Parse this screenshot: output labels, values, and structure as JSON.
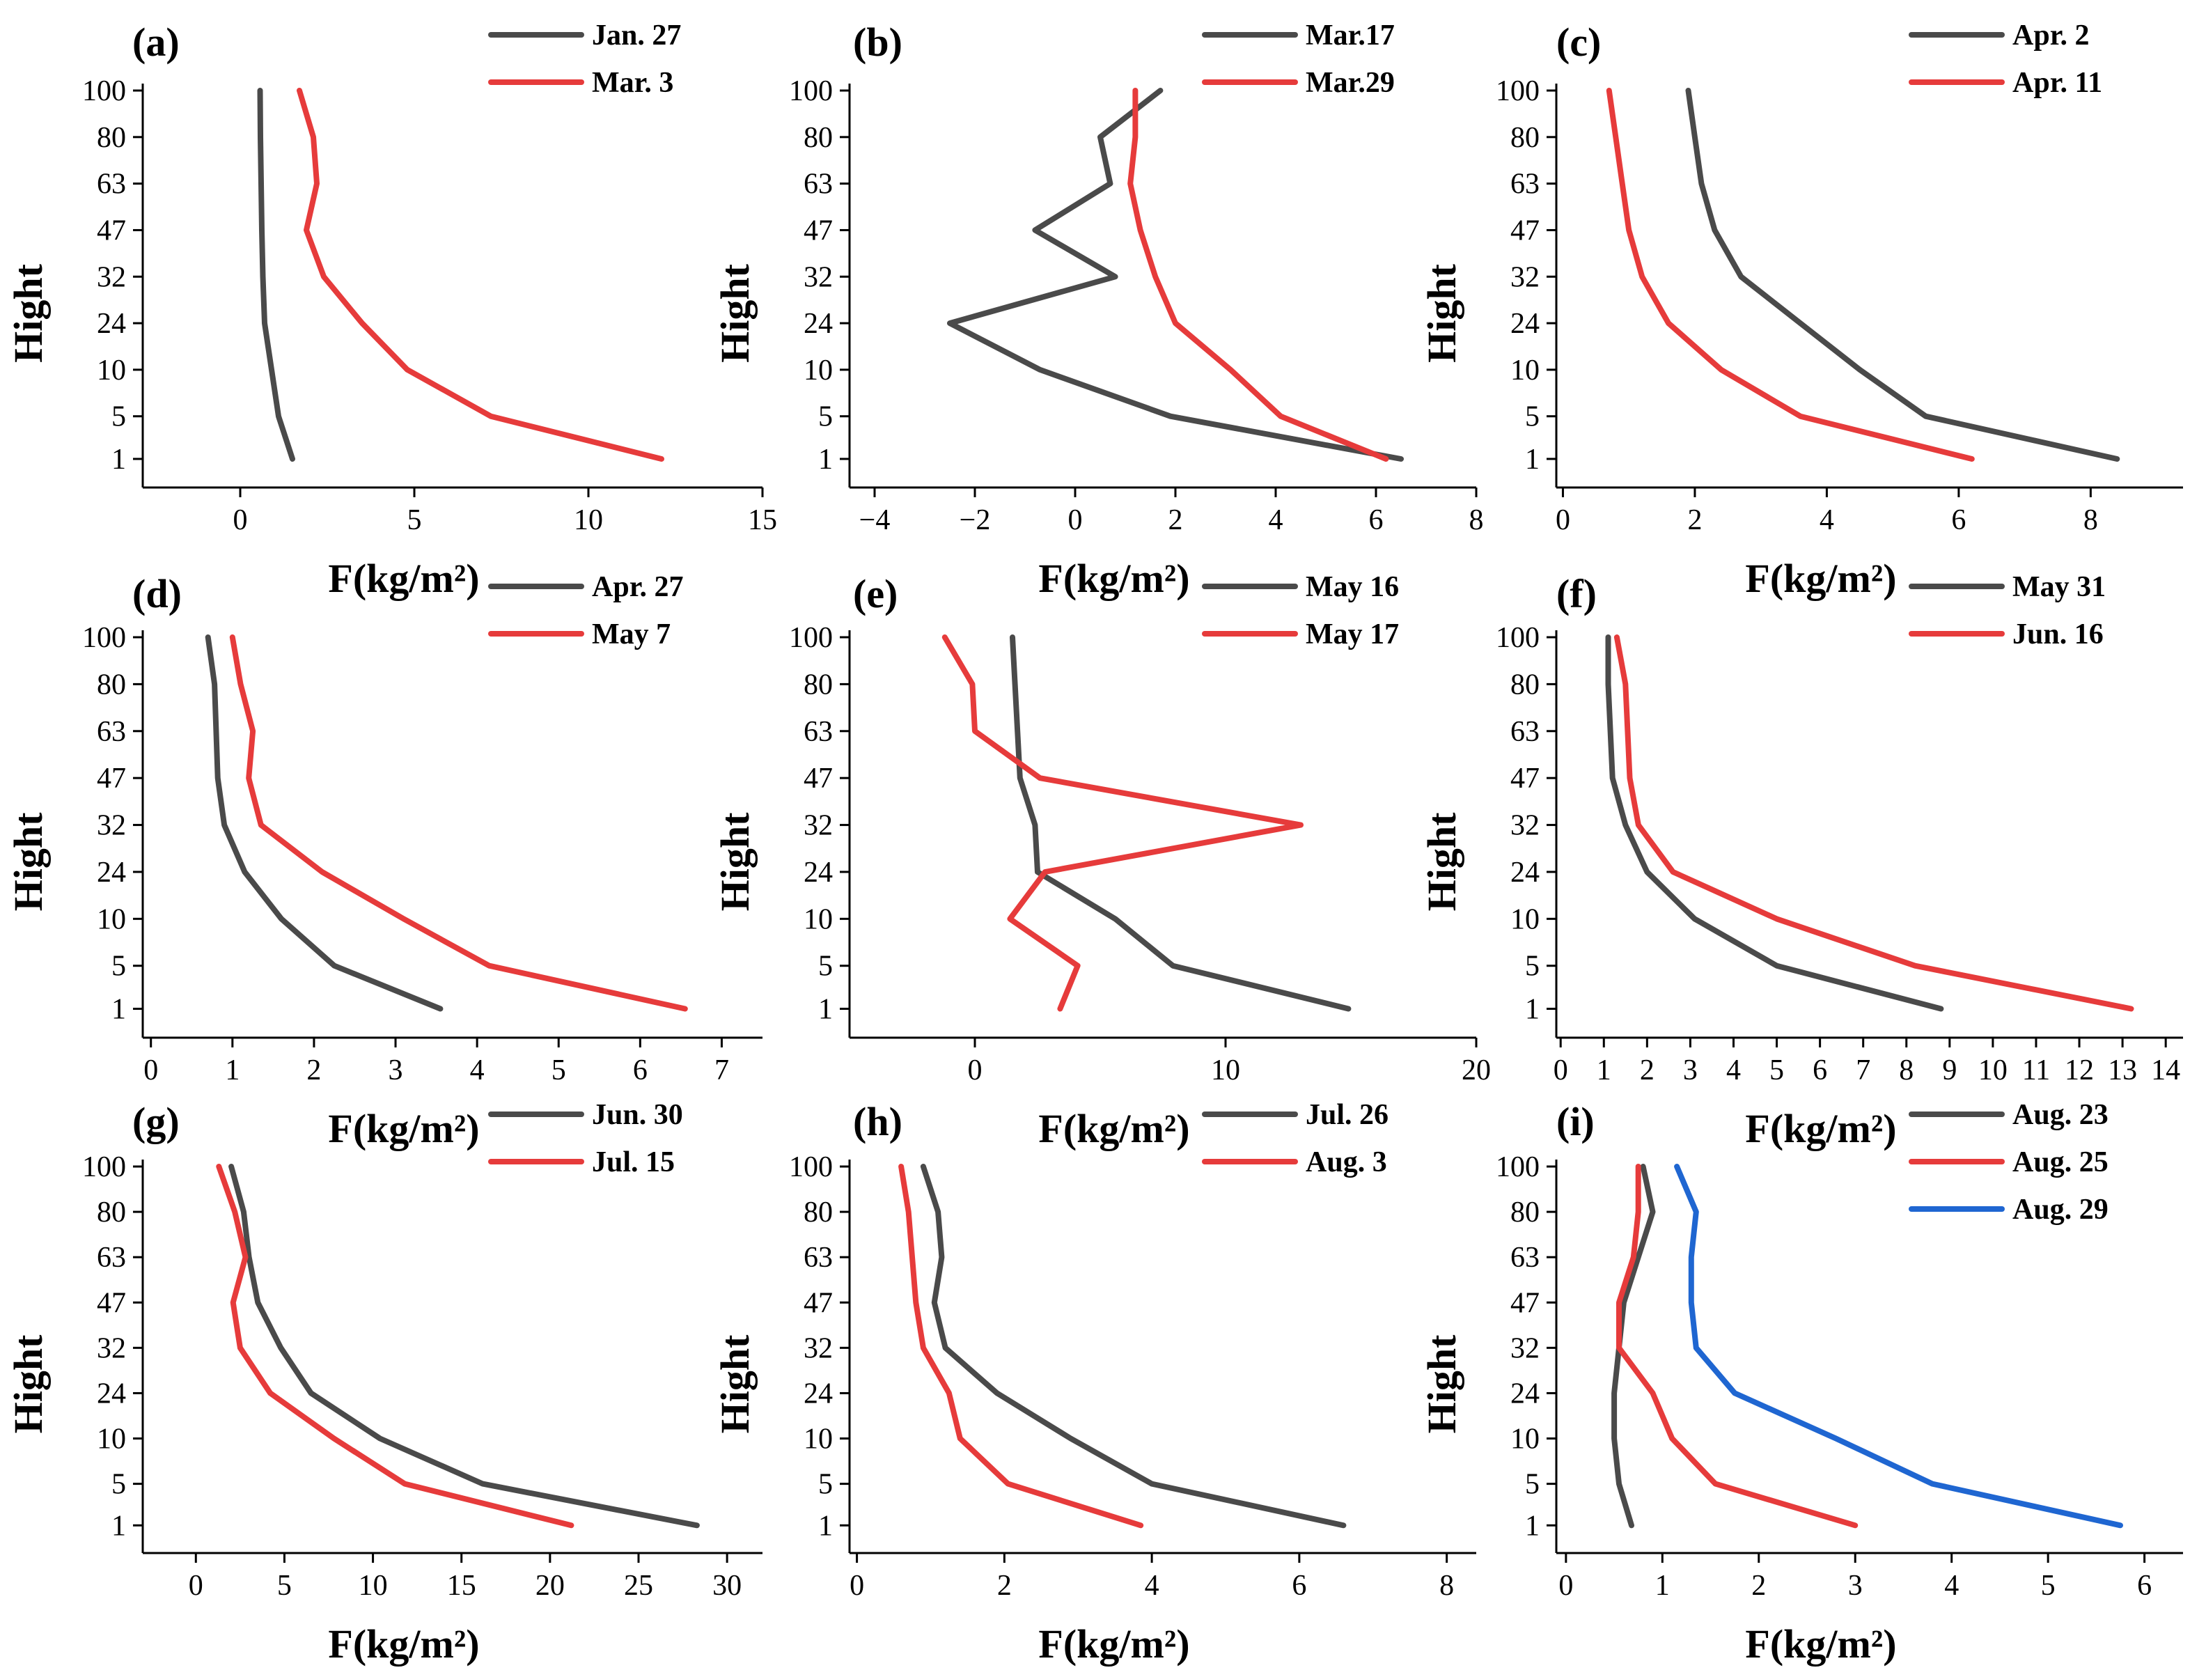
{
  "chart_data": [
    {
      "type": "line",
      "panel": "(a)",
      "xlabel": "F(kg/m²)",
      "ylabel": "Hight",
      "xlim": [
        -2.8,
        15
      ],
      "xticks": [
        0,
        5,
        10,
        15
      ],
      "heights": [
        "1",
        "5",
        "10",
        "24",
        "32",
        "47",
        "63",
        "80",
        "100"
      ],
      "legend_position": "top-right",
      "series": [
        {
          "name": "Jan. 27",
          "color": "#4a4a4a",
          "values": [
            1.5,
            1.1,
            0.9,
            0.7,
            0.65,
            0.62,
            0.6,
            0.58,
            0.57
          ]
        },
        {
          "name": "Mar. 3",
          "color": "#e63b3b",
          "values": [
            12.1,
            7.2,
            4.8,
            3.5,
            2.4,
            1.9,
            2.2,
            2.1,
            1.7
          ]
        }
      ]
    },
    {
      "type": "line",
      "panel": "(b)",
      "xlabel": "F(kg/m²)",
      "ylabel": "Hight",
      "xlim": [
        -4.5,
        8
      ],
      "xticks": [
        -4,
        -2,
        0,
        2,
        4,
        6,
        8
      ],
      "heights": [
        "1",
        "5",
        "10",
        "24",
        "32",
        "47",
        "63",
        "80",
        "100"
      ],
      "legend_position": "top-right",
      "series": [
        {
          "name": "Mar.17",
          "color": "#4a4a4a",
          "values": [
            6.5,
            1.9,
            -0.7,
            -2.5,
            0.8,
            -0.8,
            0.7,
            0.5,
            1.7
          ]
        },
        {
          "name": "Mar.29",
          "color": "#e63b3b",
          "values": [
            6.2,
            4.1,
            3.1,
            2.0,
            1.6,
            1.3,
            1.1,
            1.2,
            1.2
          ]
        }
      ]
    },
    {
      "type": "line",
      "panel": "(c)",
      "xlabel": "F(kg/m²)",
      "ylabel": "Hight",
      "xlim": [
        -0.1,
        9.4
      ],
      "xticks": [
        0,
        2,
        4,
        6,
        8
      ],
      "heights": [
        "1",
        "5",
        "10",
        "24",
        "32",
        "47",
        "63",
        "80",
        "100"
      ],
      "legend_position": "top-right",
      "series": [
        {
          "name": "Apr. 2",
          "color": "#4a4a4a",
          "values": [
            8.4,
            5.5,
            4.5,
            3.6,
            2.7,
            2.3,
            2.1,
            2.0,
            1.9
          ]
        },
        {
          "name": "Apr. 11",
          "color": "#e63b3b",
          "values": [
            6.2,
            3.6,
            2.4,
            1.6,
            1.2,
            1.0,
            0.9,
            0.8,
            0.7
          ]
        }
      ]
    },
    {
      "type": "line",
      "panel": "(d)",
      "xlabel": "F(kg/m²)",
      "ylabel": "Hight",
      "xlim": [
        -0.1,
        7.5
      ],
      "xticks": [
        0,
        1,
        2,
        3,
        4,
        5,
        6,
        7
      ],
      "heights": [
        "1",
        "5",
        "10",
        "24",
        "32",
        "47",
        "63",
        "80",
        "100"
      ],
      "legend_position": "top-right",
      "series": [
        {
          "name": "Apr. 27",
          "color": "#4a4a4a",
          "values": [
            3.55,
            2.25,
            1.6,
            1.15,
            0.9,
            0.82,
            0.8,
            0.78,
            0.7
          ]
        },
        {
          "name": "May 7",
          "color": "#e63b3b",
          "values": [
            6.55,
            4.15,
            3.1,
            2.1,
            1.35,
            1.2,
            1.25,
            1.1,
            1.0
          ]
        }
      ]
    },
    {
      "type": "line",
      "panel": "(e)",
      "xlabel": "F(kg/m²)",
      "ylabel": "Hight",
      "xlim": [
        -5,
        20
      ],
      "xticks": [
        0,
        10,
        20
      ],
      "heights": [
        "1",
        "5",
        "10",
        "24",
        "32",
        "47",
        "63",
        "80",
        "100"
      ],
      "legend_position": "top-right",
      "series": [
        {
          "name": "May 16",
          "color": "#4a4a4a",
          "values": [
            14.9,
            7.9,
            5.6,
            2.5,
            2.4,
            1.8,
            1.7,
            1.6,
            1.5
          ]
        },
        {
          "name": "May 17",
          "color": "#e63b3b",
          "values": [
            3.4,
            4.1,
            1.4,
            2.8,
            13.0,
            2.6,
            0,
            -0.1,
            -1.2
          ]
        }
      ]
    },
    {
      "type": "line",
      "panel": "(f)",
      "xlabel": "F(kg/m²)",
      "ylabel": "Hight",
      "xlim": [
        -0.1,
        14.4
      ],
      "xticks": [
        0,
        1,
        2,
        3,
        4,
        5,
        6,
        7,
        8,
        9,
        10,
        11,
        12,
        13,
        14
      ],
      "heights": [
        "1",
        "5",
        "10",
        "24",
        "32",
        "47",
        "63",
        "80",
        "100"
      ],
      "legend_position": "top-right",
      "series": [
        {
          "name": "May 31",
          "color": "#4a4a4a",
          "values": [
            8.8,
            5.0,
            3.1,
            2.0,
            1.5,
            1.2,
            1.15,
            1.1,
            1.1
          ]
        },
        {
          "name": "Jun. 16",
          "color": "#e63b3b",
          "values": [
            13.2,
            8.2,
            5.0,
            2.6,
            1.8,
            1.6,
            1.55,
            1.5,
            1.3
          ]
        }
      ]
    },
    {
      "type": "line",
      "panel": "(g)",
      "xlabel": "F(kg/m²)",
      "ylabel": "Hight",
      "xlim": [
        -3,
        32
      ],
      "xticks": [
        0,
        5,
        10,
        15,
        20,
        25,
        30
      ],
      "heights": [
        "1",
        "5",
        "10",
        "24",
        "32",
        "47",
        "63",
        "80",
        "100"
      ],
      "legend_position": "top-right",
      "series": [
        {
          "name": "Jun. 30",
          "color": "#4a4a4a",
          "values": [
            28.3,
            16.2,
            10.4,
            6.5,
            4.8,
            3.5,
            3.0,
            2.7,
            2.0
          ]
        },
        {
          "name": "Jul. 15",
          "color": "#e63b3b",
          "values": [
            21.2,
            11.8,
            7.8,
            4.2,
            2.5,
            2.1,
            2.8,
            2.2,
            1.3
          ]
        }
      ]
    },
    {
      "type": "line",
      "panel": "(h)",
      "xlabel": "F(kg/m²)",
      "ylabel": "Hight",
      "xlim": [
        -0.1,
        8.4
      ],
      "xticks": [
        0,
        2,
        4,
        6,
        8
      ],
      "heights": [
        "1",
        "5",
        "10",
        "24",
        "32",
        "47",
        "63",
        "80",
        "100"
      ],
      "legend_position": "top-right",
      "series": [
        {
          "name": "Jul. 26",
          "color": "#4a4a4a",
          "values": [
            6.6,
            4.0,
            2.9,
            1.9,
            1.2,
            1.05,
            1.15,
            1.1,
            0.9
          ]
        },
        {
          "name": "Aug. 3",
          "color": "#e63b3b",
          "values": [
            3.85,
            2.05,
            1.4,
            1.25,
            0.9,
            0.8,
            0.75,
            0.7,
            0.6
          ]
        }
      ]
    },
    {
      "type": "line",
      "panel": "(i)",
      "xlabel": "F(kg/m²)",
      "ylabel": "Hight",
      "xlim": [
        -0.1,
        6.4
      ],
      "xticks": [
        0,
        1,
        2,
        3,
        4,
        5,
        6
      ],
      "heights": [
        "1",
        "5",
        "10",
        "24",
        "32",
        "47",
        "63",
        "80",
        "100"
      ],
      "legend_position": "top-right",
      "series": [
        {
          "name": "Aug. 23",
          "color": "#4a4a4a",
          "values": [
            0.68,
            0.55,
            0.5,
            0.5,
            0.55,
            0.6,
            0.75,
            0.9,
            0.8
          ]
        },
        {
          "name": "Aug. 25",
          "color": "#e63b3b",
          "values": [
            3.0,
            1.55,
            1.1,
            0.9,
            0.55,
            0.55,
            0.7,
            0.75,
            0.75
          ]
        },
        {
          "name": "Aug. 29",
          "color": "#1f66d1",
          "values": [
            5.75,
            3.8,
            2.8,
            1.75,
            1.35,
            1.3,
            1.3,
            1.35,
            1.15
          ]
        }
      ]
    }
  ]
}
